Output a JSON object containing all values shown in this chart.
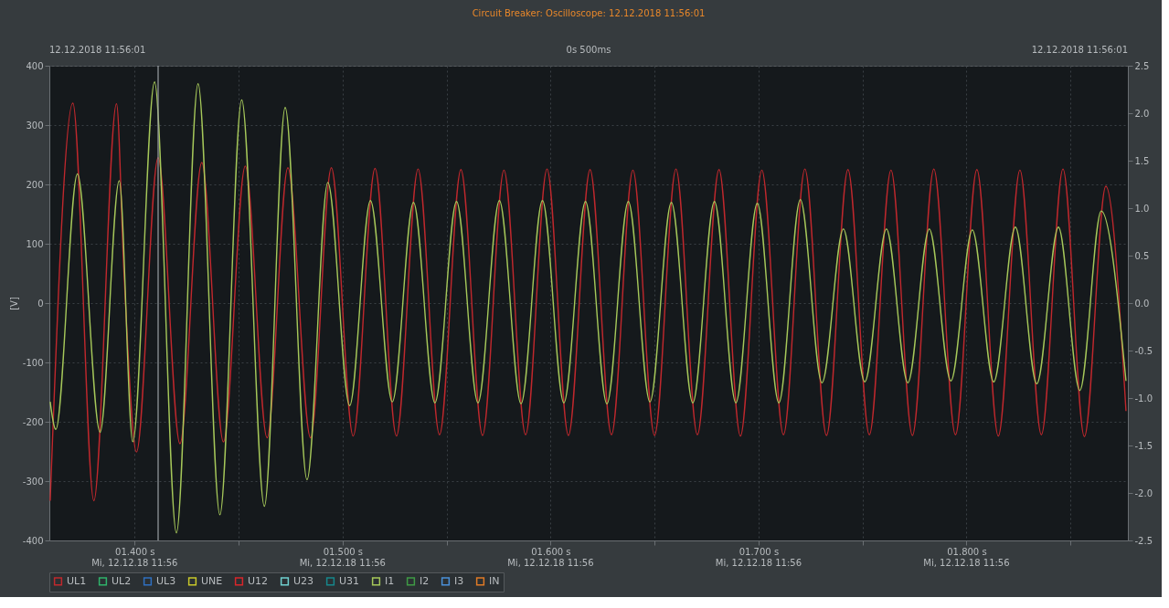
{
  "chart_data": {
    "type": "line",
    "title": "Circuit Breaker: Oscilloscope: 12.12.2018 11:56:01",
    "ylabel": "[V]",
    "annotations": [
      "12.12.2018 11:56:01",
      "0s 500ms",
      "12.12.2018 11:56:01",
      "Mi, 12.12.18 11:56",
      "Mi, 12.12.18 11:56",
      "Mi, 12.12.18 11:56",
      "Mi, 12.12.18 11:56",
      "Mi, 12.12.18 11:56"
    ],
    "xlim": [
      1.359,
      1.8776
    ],
    "xticks": [
      {
        "value": 1.4,
        "label": "01.400 s"
      },
      {
        "value": 1.45,
        "label": null
      },
      {
        "value": 1.5,
        "label": "01.500 s"
      },
      {
        "value": 1.55,
        "label": null
      },
      {
        "value": 1.6,
        "label": "01.600 s"
      },
      {
        "value": 1.65,
        "label": null
      },
      {
        "value": 1.7,
        "label": "01.700 s"
      },
      {
        "value": 1.75,
        "label": null
      },
      {
        "value": 1.8,
        "label": "01.800 s"
      },
      {
        "value": 1.85,
        "label": null
      }
    ],
    "ylim": [
      -400,
      400
    ],
    "yticks": [
      -400,
      -300,
      -200,
      -100,
      0,
      100,
      200,
      300,
      400
    ],
    "y2lim": [
      -2.5,
      2.5
    ],
    "y2ticks": [
      {
        "value": -2.5,
        "label": "-2.5"
      },
      {
        "value": -2,
        "label": "-2.0"
      },
      {
        "value": -1.5,
        "label": "-1.5"
      },
      {
        "value": -1,
        "label": "-1.0"
      },
      {
        "value": -0.5,
        "label": "-0.5"
      },
      {
        "value": 0,
        "label": "0.0"
      },
      {
        "value": 0.5,
        "label": "0.5"
      },
      {
        "value": 1,
        "label": "1.0"
      },
      {
        "value": 1.5,
        "label": "1.5"
      },
      {
        "value": 2,
        "label": "2.0"
      },
      {
        "value": 2.5,
        "label": "2.5"
      }
    ],
    "grid": true,
    "legend": "bottom",
    "marker": "none",
    "line_style": "solid",
    "ref_lines": [
      {
        "axis": "x",
        "value": 1.4113,
        "color": "#9a9fa3"
      }
    ],
    "series": [
      {
        "name": "UL1",
        "color": "#c0282d",
        "x": [
          1.3594,
          1.3703,
          1.3804,
          1.3913,
          1.3948,
          1.4009,
          1.4113,
          1.4218,
          1.4323,
          1.4427,
          1.4532,
          1.4637,
          1.4737,
          1.4846,
          1.4946,
          1.5051,
          1.5156,
          1.5259,
          1.5363,
          1.5466,
          1.5569,
          1.5673,
          1.5776,
          1.588,
          1.5983,
          1.6086,
          1.619,
          1.6293,
          1.6396,
          1.65,
          1.6603,
          1.6706,
          1.681,
          1.6913,
          1.7016,
          1.712,
          1.7223,
          1.7327,
          1.743,
          1.7533,
          1.7637,
          1.774,
          1.7843,
          1.7947,
          1.805,
          1.8153,
          1.8257,
          1.836,
          1.8464,
          1.8567,
          1.867,
          1.8767
        ],
        "values": [
          -333,
          337,
          -333,
          336,
          58,
          -251,
          245,
          -237,
          237,
          -234,
          231,
          -227,
          228,
          -227,
          228,
          -224,
          227,
          -224,
          226,
          -222,
          225,
          -223,
          224,
          -222,
          226,
          -223,
          225,
          -222,
          224,
          -223,
          226,
          -222,
          225,
          -224,
          224,
          -222,
          226,
          -223,
          225,
          -222,
          224,
          -223,
          226,
          -222,
          225,
          -224,
          224,
          -222,
          226,
          -225,
          197,
          -182
        ]
      },
      {
        "name": "UL2",
        "color": "#2fb36b"
      },
      {
        "name": "UL3",
        "color": "#2f6fc0"
      },
      {
        "name": "UNE",
        "color": "#c8c82a"
      },
      {
        "name": "U12",
        "color": "#d8262b"
      },
      {
        "name": "U23",
        "color": "#6fd0d0"
      },
      {
        "name": "U31",
        "color": "#16878c"
      },
      {
        "name": "I1",
        "color": "#a6c85a",
        "axis": "y2",
        "x": [
          1.3594,
          1.3621,
          1.3725,
          1.3834,
          1.3926,
          1.3991,
          1.4096,
          1.4201,
          1.4305,
          1.441,
          1.4515,
          1.4624,
          1.4724,
          1.4829,
          1.4929,
          1.5034,
          1.5134,
          1.5239,
          1.5341,
          1.5444,
          1.5548,
          1.5651,
          1.5754,
          1.5858,
          1.5961,
          1.6064,
          1.6168,
          1.6271,
          1.6374,
          1.6478,
          1.6581,
          1.6684,
          1.6788,
          1.6891,
          1.6994,
          1.7098,
          1.7201,
          1.7305,
          1.7408,
          1.7511,
          1.7615,
          1.7718,
          1.7821,
          1.7925,
          1.8028,
          1.8131,
          1.8235,
          1.8338,
          1.8442,
          1.8545,
          1.8648,
          1.8767
        ],
        "values": [
          -1.04,
          -1.33,
          1.36,
          -1.36,
          1.29,
          -1.46,
          2.33,
          -2.42,
          2.31,
          -2.23,
          2.14,
          -2.14,
          2.06,
          -1.86,
          1.27,
          -1.08,
          1.08,
          -1.04,
          1.06,
          -1.05,
          1.07,
          -1.05,
          1.08,
          -1.06,
          1.08,
          -1.05,
          1.07,
          -1.06,
          1.07,
          -1.04,
          1.06,
          -1.05,
          1.07,
          -1.05,
          1.05,
          -1.05,
          1.09,
          -0.84,
          0.78,
          -0.83,
          0.78,
          -0.84,
          0.78,
          -0.82,
          0.77,
          -0.83,
          0.8,
          -0.85,
          0.8,
          -0.92,
          0.97,
          -0.82
        ]
      },
      {
        "name": "I2",
        "color": "#3f9a45"
      },
      {
        "name": "I3",
        "color": "#4a90d9"
      },
      {
        "name": "IN",
        "color": "#e07a26"
      }
    ]
  }
}
